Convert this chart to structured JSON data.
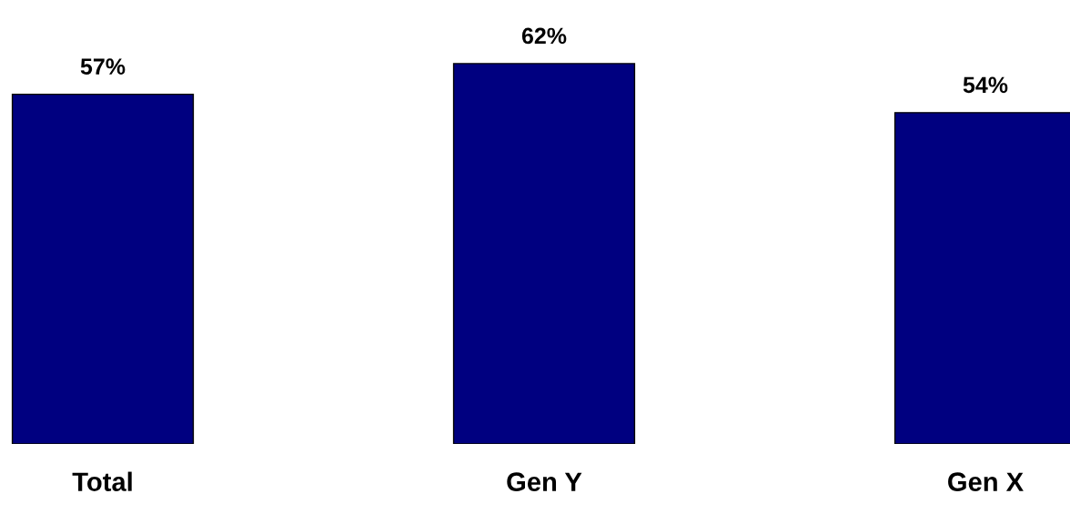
{
  "chart_data": {
    "type": "bar",
    "categories": [
      "Total",
      "Gen Y",
      "Gen X"
    ],
    "values": [
      57,
      62,
      54
    ],
    "value_labels": [
      "57%",
      "62%",
      "54%"
    ],
    "color": "#000080",
    "tick_labels": "x",
    "grid": false,
    "legend": false
  }
}
